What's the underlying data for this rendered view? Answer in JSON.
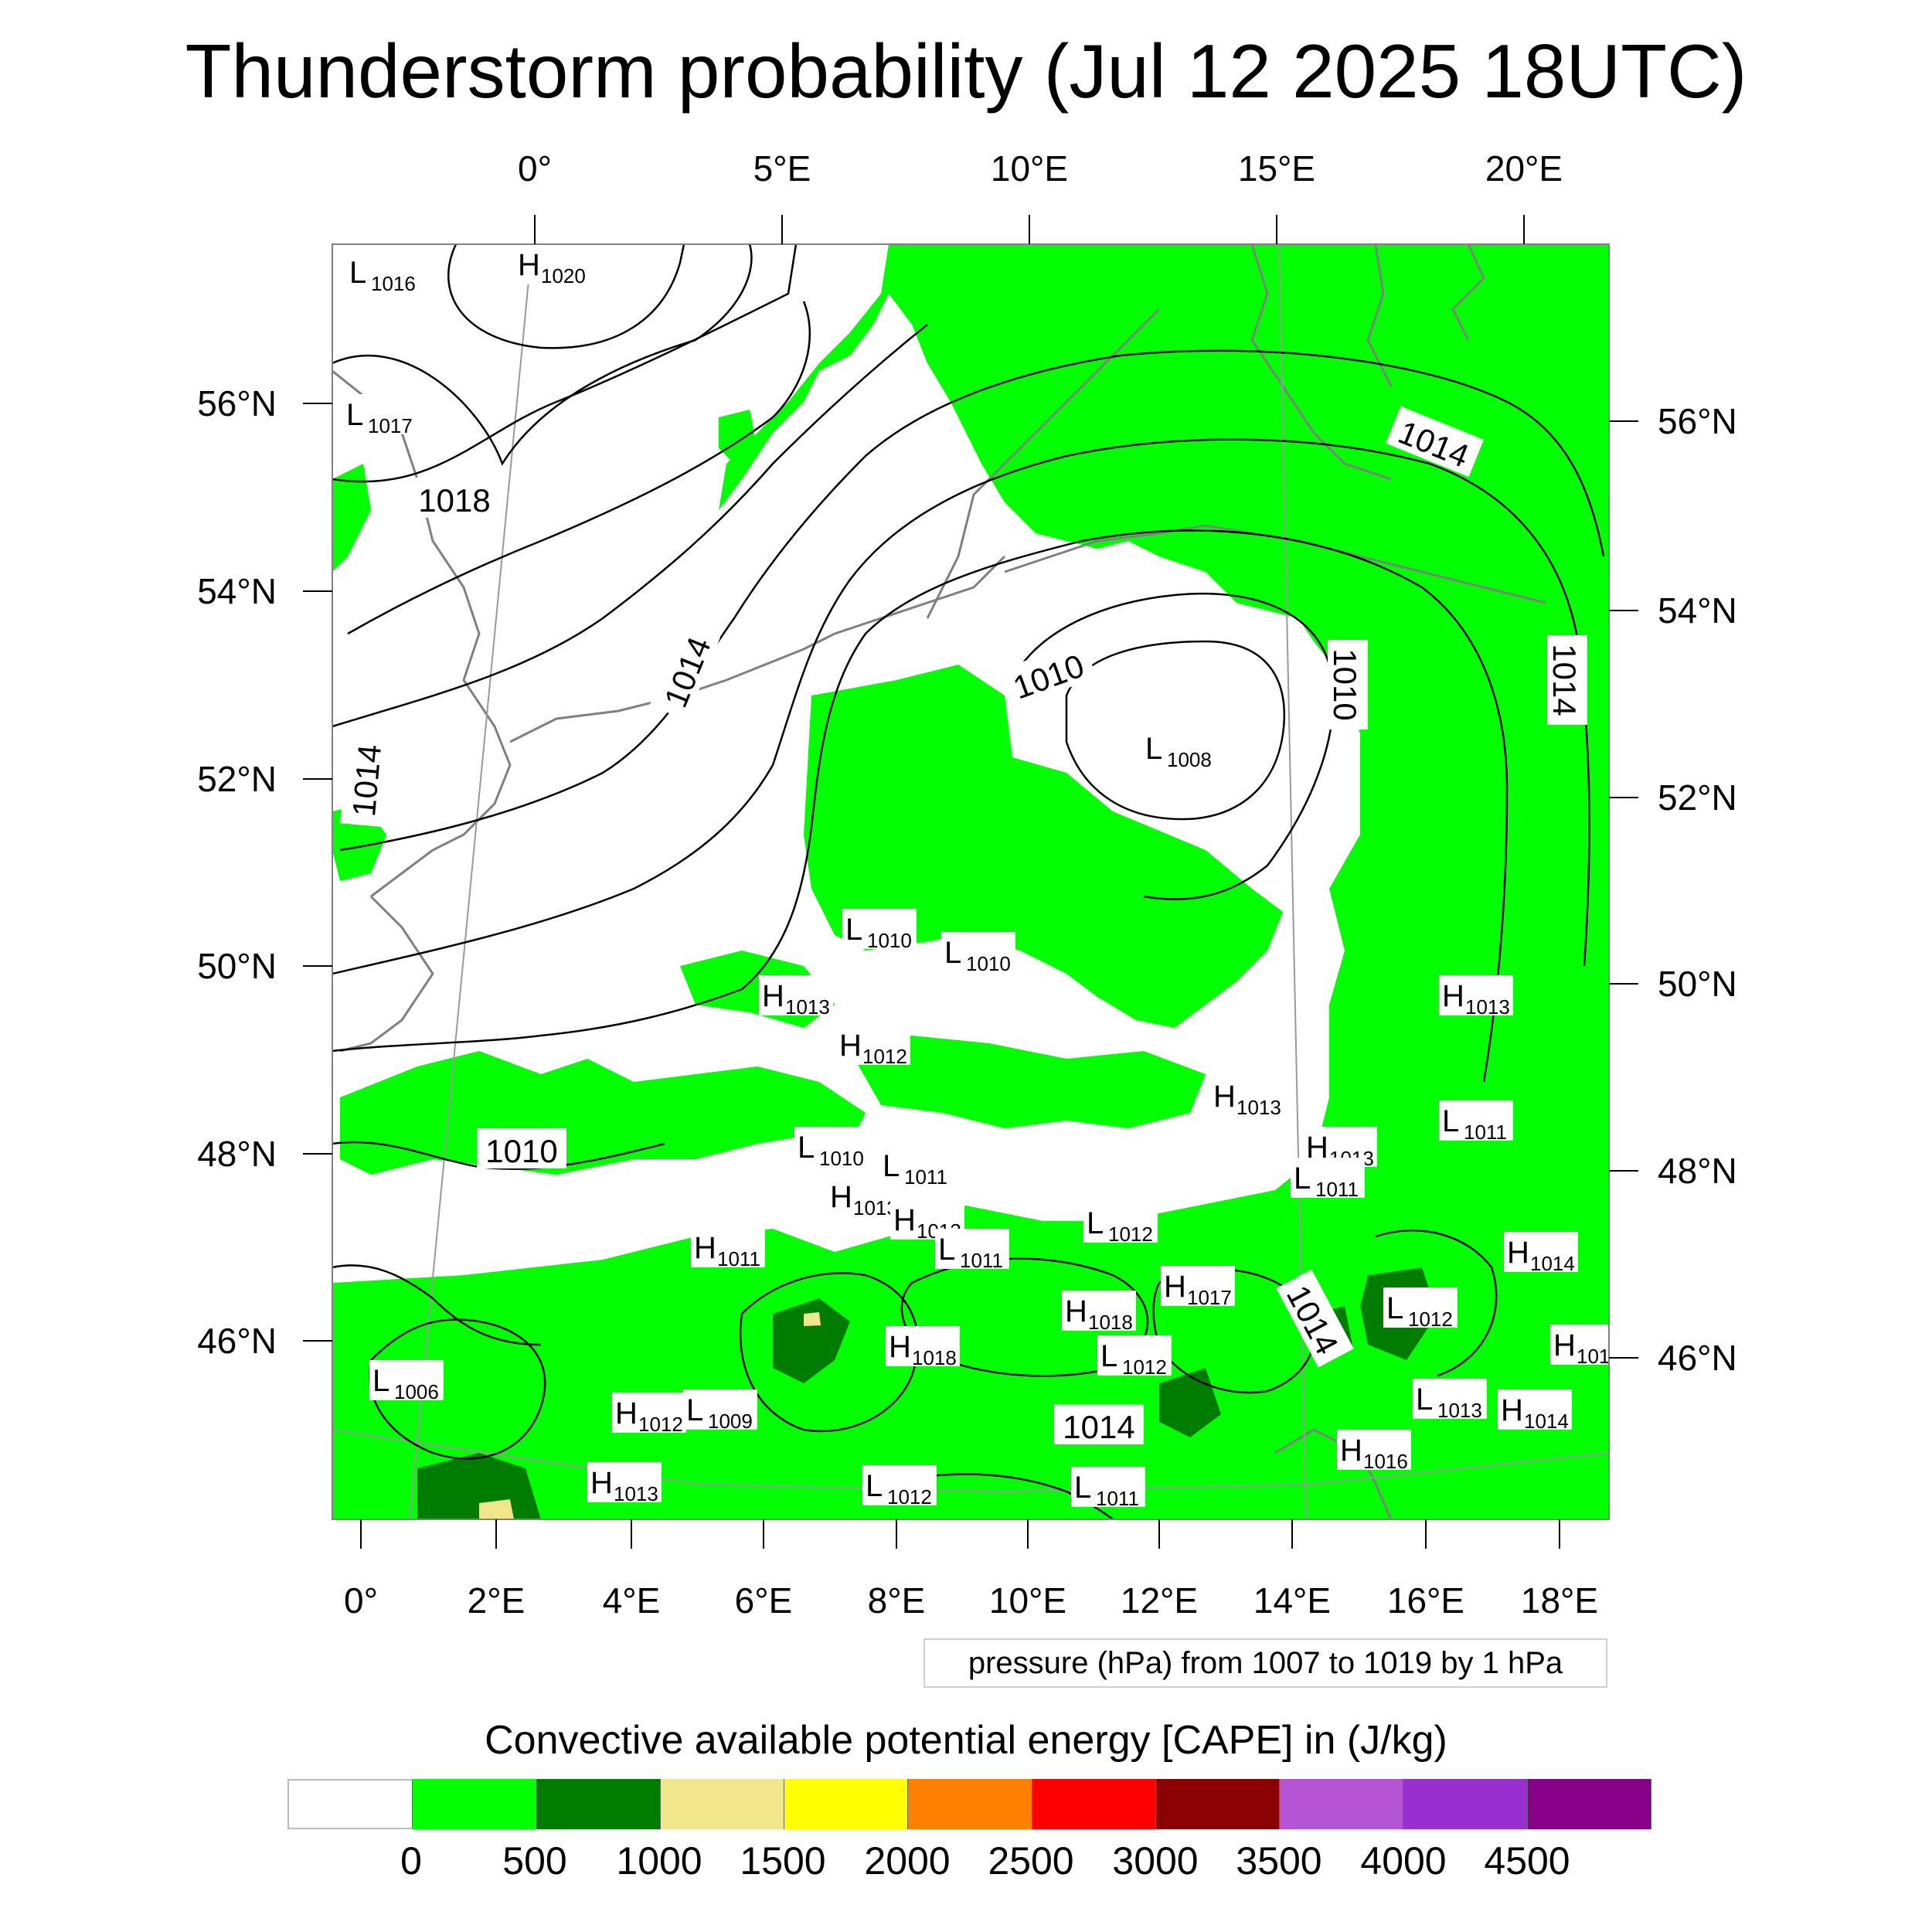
{
  "title": "Thunderstorm probability (Jul 12 2025 18UTC)",
  "axes": {
    "top_ticks": [
      "0°",
      "5°E",
      "10°E",
      "15°E",
      "20°E"
    ],
    "bottom_ticks": [
      "0°",
      "2°E",
      "4°E",
      "6°E",
      "8°E",
      "10°E",
      "12°E",
      "14°E",
      "16°E",
      "18°E"
    ],
    "left_ticks": [
      "56°N",
      "54°N",
      "52°N",
      "50°N",
      "48°N",
      "46°N"
    ],
    "right_ticks": [
      "56°N",
      "54°N",
      "52°N",
      "50°N",
      "48°N",
      "46°N"
    ]
  },
  "pressure_note": "pressure (hPa) from 1007 to 1019 by 1 hPa",
  "colorbar": {
    "title": "Convective available potential energy [CAPE] in (J/kg)",
    "colors": [
      "#ffffff",
      "#00ff00",
      "#007d00",
      "#f0e68c",
      "#ffff00",
      "#ff8000",
      "#ff0000",
      "#8b0000",
      "#b455d5",
      "#9a2fd0",
      "#870087"
    ],
    "labels": [
      "0",
      "500",
      "1000",
      "1500",
      "2000",
      "2500",
      "3000",
      "3500",
      "4000",
      "4500"
    ]
  },
  "pressure_centers": [
    {
      "type": "L",
      "value": "1016"
    },
    {
      "type": "H",
      "value": "1020"
    },
    {
      "type": "L",
      "value": "1017"
    },
    {
      "type": "L",
      "value": "1008"
    },
    {
      "type": "L",
      "value": "1010"
    },
    {
      "type": "L",
      "value": "1010"
    },
    {
      "type": "H",
      "value": "1013"
    },
    {
      "type": "H",
      "value": "1012"
    },
    {
      "type": "H",
      "value": "1013"
    },
    {
      "type": "H",
      "value": "1013"
    },
    {
      "type": "L",
      "value": "1011"
    },
    {
      "type": "H",
      "value": "1013"
    },
    {
      "type": "L",
      "value": "1011"
    },
    {
      "type": "L",
      "value": "1010"
    },
    {
      "type": "L",
      "value": "1011"
    },
    {
      "type": "H",
      "value": "1013"
    },
    {
      "type": "H",
      "value": "1013"
    },
    {
      "type": "L",
      "value": "1011"
    },
    {
      "type": "L",
      "value": "1012"
    },
    {
      "type": "H",
      "value": "1011"
    },
    {
      "type": "H",
      "value": "1014"
    },
    {
      "type": "H",
      "value": "1017"
    },
    {
      "type": "H",
      "value": "1018"
    },
    {
      "type": "L",
      "value": "1012"
    },
    {
      "type": "H",
      "value": "1018"
    },
    {
      "type": "L",
      "value": "1012"
    },
    {
      "type": "L",
      "value": "1006"
    },
    {
      "type": "H",
      "value": "1012"
    },
    {
      "type": "L",
      "value": "1009"
    },
    {
      "type": "L",
      "value": "1013"
    },
    {
      "type": "H",
      "value": "1014"
    },
    {
      "type": "H",
      "value": "1016"
    },
    {
      "type": "H",
      "value": "1013"
    },
    {
      "type": "L",
      "value": "1012"
    },
    {
      "type": "L",
      "value": "1011"
    },
    {
      "type": "H",
      "value": "101"
    }
  ],
  "isobar_labels": [
    "1014",
    "1018",
    "1014",
    "1010",
    "1010",
    "1014",
    "1014",
    "1010",
    "1014",
    "1014"
  ]
}
